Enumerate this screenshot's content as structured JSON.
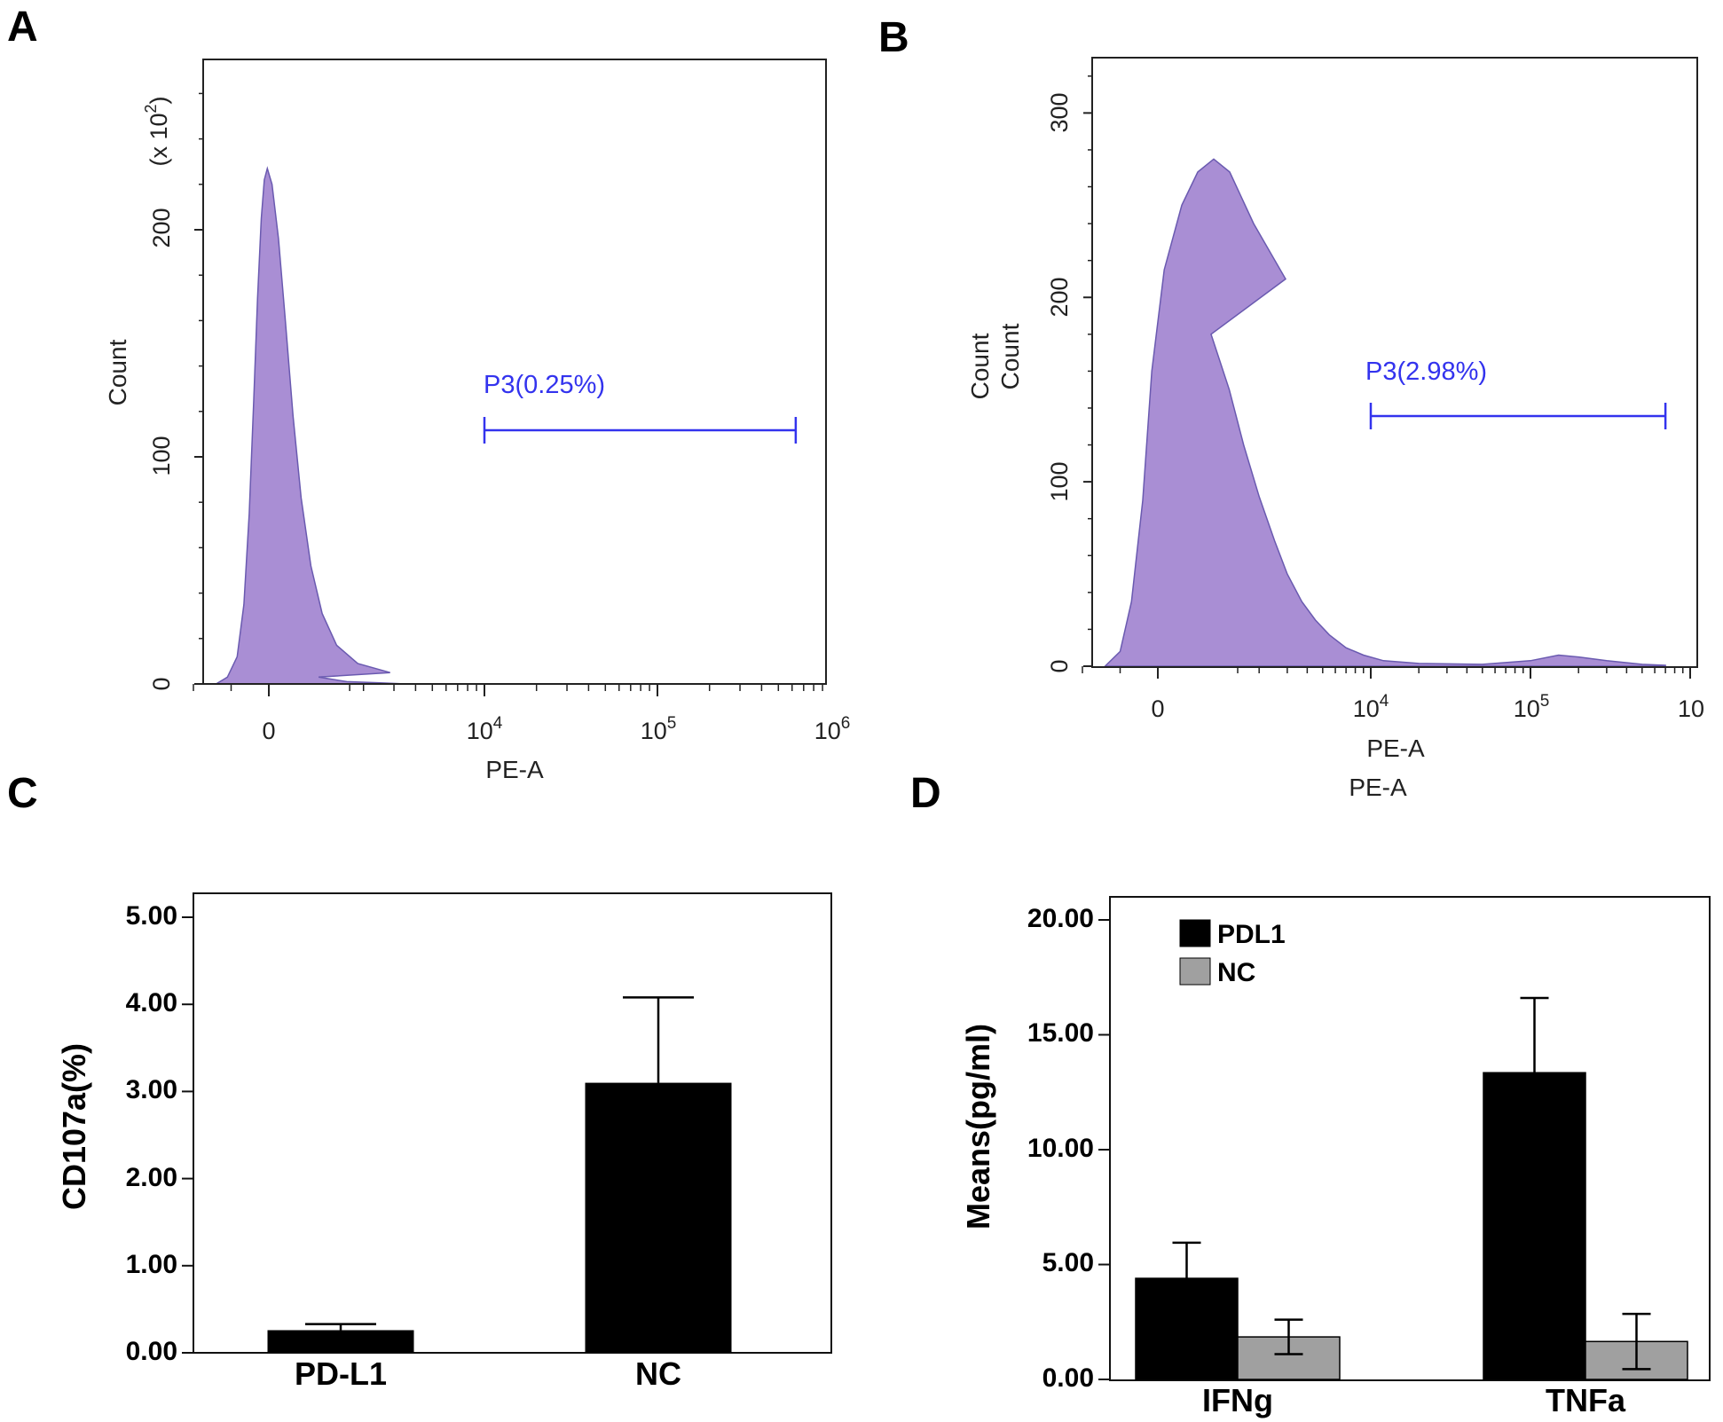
{
  "chart_data": [
    {
      "panel": "A",
      "type": "area",
      "title": "",
      "xlabel": "PE-A",
      "ylabel": "Count",
      "y_multiplier_label": "(x10^2)",
      "y_multiplier_text": "(x 10",
      "y_multiplier_exp": "2",
      "y_multiplier_close": ")",
      "yticks": [
        "0",
        "100",
        "200"
      ],
      "ylim": [
        0,
        270
      ],
      "xticks": [
        {
          "base": "0",
          "exp": ""
        },
        {
          "base": "10",
          "exp": "4"
        },
        {
          "base": "10",
          "exp": "5"
        },
        {
          "base": "10",
          "exp": "6"
        }
      ],
      "histogram": [
        [
          -700,
          0
        ],
        [
          -550,
          3
        ],
        [
          -420,
          12
        ],
        [
          -330,
          35
        ],
        [
          -260,
          75
        ],
        [
          -200,
          125
        ],
        [
          -150,
          170
        ],
        [
          -100,
          205
        ],
        [
          -60,
          222
        ],
        [
          -20,
          227
        ],
        [
          20,
          220
        ],
        [
          60,
          196
        ],
        [
          100,
          162
        ],
        [
          150,
          118
        ],
        [
          200,
          82
        ],
        [
          260,
          52
        ],
        [
          330,
          31
        ],
        [
          420,
          17
        ],
        [
          550,
          9
        ],
        [
          750,
          5
        ],
        [
          1100,
          3
        ],
        [
          1600,
          1
        ],
        [
          2500,
          0.5
        ],
        [
          3500,
          0
        ]
      ],
      "gate": {
        "label": "P3(0.25%)",
        "x_range": [
          10000,
          630000
        ]
      },
      "fill_color": "#a98ed4",
      "line_color": "#6a5ab0"
    },
    {
      "panel": "B",
      "type": "area",
      "title": "",
      "xlabel": "PE-A",
      "xlabel_echo": "PE-A",
      "ylabel": "Count",
      "ylabel_echo": "Count",
      "yticks": [
        "0",
        "100",
        "200",
        "300"
      ],
      "ylim": [
        0,
        330
      ],
      "xticks": [
        {
          "base": "0",
          "exp": ""
        },
        {
          "base": "10",
          "exp": "4"
        },
        {
          "base": "10",
          "exp": "5"
        },
        {
          "base": "10",
          "exp": ""
        }
      ],
      "histogram": [
        [
          -700,
          0
        ],
        [
          -500,
          8
        ],
        [
          -350,
          35
        ],
        [
          -200,
          90
        ],
        [
          -80,
          160
        ],
        [
          40,
          215
        ],
        [
          150,
          250
        ],
        [
          250,
          268
        ],
        [
          350,
          275
        ],
        [
          450,
          268
        ],
        [
          600,
          240
        ],
        [
          800,
          210
        ],
        [
          1000,
          180
        ],
        [
          1300,
          150
        ],
        [
          1600,
          120
        ],
        [
          2000,
          92
        ],
        [
          2500,
          68
        ],
        [
          3000,
          50
        ],
        [
          3700,
          35
        ],
        [
          4500,
          25
        ],
        [
          5500,
          17
        ],
        [
          7000,
          10
        ],
        [
          9000,
          6
        ],
        [
          12000,
          3
        ],
        [
          20000,
          1.5
        ],
        [
          50000,
          1
        ],
        [
          100000,
          3
        ],
        [
          150000,
          6
        ],
        [
          200000,
          5
        ],
        [
          300000,
          3
        ],
        [
          500000,
          1
        ],
        [
          700000,
          0.5
        ]
      ],
      "gate": {
        "label": "P3(2.98%)",
        "x_range": [
          10000,
          700000
        ]
      },
      "fill_color": "#a98ed4",
      "line_color": "#6a5ab0"
    },
    {
      "panel": "C",
      "type": "bar",
      "title": "",
      "xlabel": "",
      "ylabel": "CD107a(%)",
      "categories": [
        "PD-L1",
        "NC"
      ],
      "values": [
        0.26,
        3.1
      ],
      "errors": [
        0.07,
        0.98
      ],
      "ylim": [
        0,
        5
      ],
      "yticks": [
        "0.00",
        "1.00",
        "2.00",
        "3.00",
        "4.00",
        "5.00"
      ],
      "bar_color": "#000000"
    },
    {
      "panel": "D",
      "type": "bar",
      "title": "",
      "xlabel": "",
      "ylabel": "Means(pg/ml)",
      "categories": [
        "IFNg",
        "TNFa"
      ],
      "series": [
        {
          "name": "PDL1",
          "values": [
            4.4,
            13.35
          ],
          "errors": [
            1.55,
            3.25
          ],
          "color": "#000000"
        },
        {
          "name": "NC",
          "values": [
            1.85,
            1.65
          ],
          "errors": [
            0.75,
            1.2
          ],
          "color": "#a0a0a0"
        }
      ],
      "ylim": [
        0,
        20
      ],
      "yticks": [
        "0.00",
        "5.00",
        "10.00",
        "15.00",
        "20.00"
      ],
      "legend_position": "top-left"
    }
  ]
}
